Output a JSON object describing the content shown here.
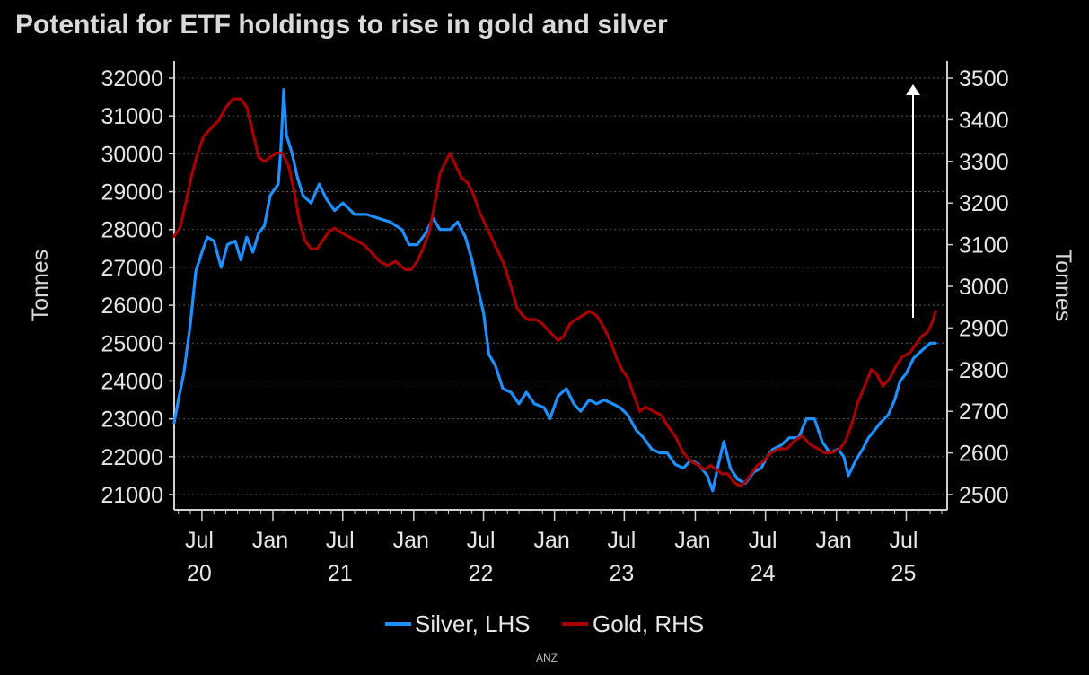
{
  "source": "ANZ",
  "colors": {
    "background": "#000000",
    "silver": "#1e90ff",
    "gold": "#a80000",
    "axis": "#d0d0d0",
    "grid": "#5a5a5a",
    "arrow": "#ffffff"
  },
  "chart_data": {
    "type": "line",
    "title": "Potential for ETF holdings to rise in gold and silver",
    "ylabel_left": "Tonnes",
    "ylabel_right": "Tonnes",
    "ylim_left": [
      21000,
      32000
    ],
    "ylim_right": [
      2500,
      3500
    ],
    "yticks_left": [
      "21000",
      "22000",
      "23000",
      "24000",
      "25000",
      "26000",
      "27000",
      "28000",
      "29000",
      "30000",
      "31000",
      "32000"
    ],
    "yticks_right": [
      "2500",
      "2600",
      "2700",
      "2800",
      "2900",
      "3000",
      "3100",
      "3200",
      "3300",
      "3400",
      "3500"
    ],
    "xlim": [
      "2020-04-20",
      "2025-10-15"
    ],
    "xticks": [
      {
        "date": "2020-07-01",
        "month": "Jul",
        "year": "20"
      },
      {
        "date": "2021-01-01",
        "month": "Jan",
        "year": ""
      },
      {
        "date": "2021-07-01",
        "month": "Jul",
        "year": "21"
      },
      {
        "date": "2022-01-01",
        "month": "Jan",
        "year": ""
      },
      {
        "date": "2022-07-01",
        "month": "Jul",
        "year": "22"
      },
      {
        "date": "2023-01-01",
        "month": "Jan",
        "year": ""
      },
      {
        "date": "2023-07-01",
        "month": "Jul",
        "year": "23"
      },
      {
        "date": "2024-01-01",
        "month": "Jan",
        "year": ""
      },
      {
        "date": "2024-07-01",
        "month": "Jul",
        "year": "24"
      },
      {
        "date": "2025-01-01",
        "month": "Jan",
        "year": ""
      },
      {
        "date": "2025-07-01",
        "month": "Jul",
        "year": "25"
      }
    ],
    "grid": "horizontal dotted",
    "legend_position": "bottom-center",
    "annotation": "upward arrow",
    "series": [
      {
        "name": "Silver, LHS",
        "axis": "left",
        "color": "#1e90ff",
        "points": [
          [
            "2020-04-20",
            22900
          ],
          [
            "2020-05-01",
            23500
          ],
          [
            "2020-05-15",
            24200
          ],
          [
            "2020-06-01",
            25500
          ],
          [
            "2020-06-15",
            26900
          ],
          [
            "2020-07-01",
            27400
          ],
          [
            "2020-07-15",
            27800
          ],
          [
            "2020-08-01",
            27700
          ],
          [
            "2020-08-20",
            27000
          ],
          [
            "2020-09-05",
            27600
          ],
          [
            "2020-09-25",
            27700
          ],
          [
            "2020-10-10",
            27200
          ],
          [
            "2020-10-25",
            27800
          ],
          [
            "2020-11-10",
            27400
          ],
          [
            "2020-11-25",
            27900
          ],
          [
            "2020-12-10",
            28100
          ],
          [
            "2020-12-25",
            28900
          ],
          [
            "2021-01-15",
            29200
          ],
          [
            "2021-01-22",
            30200
          ],
          [
            "2021-01-29",
            31700
          ],
          [
            "2021-02-05",
            30500
          ],
          [
            "2021-02-20",
            30000
          ],
          [
            "2021-03-05",
            29400
          ],
          [
            "2021-03-20",
            28900
          ],
          [
            "2021-04-10",
            28700
          ],
          [
            "2021-05-01",
            29200
          ],
          [
            "2021-05-20",
            28800
          ],
          [
            "2021-06-10",
            28500
          ],
          [
            "2021-07-01",
            28700
          ],
          [
            "2021-08-01",
            28400
          ],
          [
            "2021-09-01",
            28400
          ],
          [
            "2021-10-01",
            28300
          ],
          [
            "2021-11-01",
            28200
          ],
          [
            "2021-12-01",
            28000
          ],
          [
            "2021-12-20",
            27600
          ],
          [
            "2022-01-10",
            27600
          ],
          [
            "2022-02-01",
            27900
          ],
          [
            "2022-02-20",
            28300
          ],
          [
            "2022-03-10",
            28000
          ],
          [
            "2022-04-05",
            28000
          ],
          [
            "2022-04-25",
            28200
          ],
          [
            "2022-05-15",
            27800
          ],
          [
            "2022-06-01",
            27200
          ],
          [
            "2022-06-15",
            26500
          ],
          [
            "2022-07-01",
            25800
          ],
          [
            "2022-07-15",
            24700
          ],
          [
            "2022-08-01",
            24400
          ],
          [
            "2022-08-20",
            23800
          ],
          [
            "2022-09-10",
            23700
          ],
          [
            "2022-10-01",
            23400
          ],
          [
            "2022-10-20",
            23700
          ],
          [
            "2022-11-10",
            23400
          ],
          [
            "2022-12-05",
            23300
          ],
          [
            "2022-12-20",
            23000
          ],
          [
            "2023-01-10",
            23600
          ],
          [
            "2023-02-01",
            23800
          ],
          [
            "2023-02-20",
            23400
          ],
          [
            "2023-03-10",
            23200
          ],
          [
            "2023-04-01",
            23500
          ],
          [
            "2023-04-20",
            23400
          ],
          [
            "2023-05-10",
            23500
          ],
          [
            "2023-06-01",
            23400
          ],
          [
            "2023-06-20",
            23300
          ],
          [
            "2023-07-10",
            23100
          ],
          [
            "2023-08-01",
            22700
          ],
          [
            "2023-08-20",
            22500
          ],
          [
            "2023-09-10",
            22200
          ],
          [
            "2023-10-01",
            22100
          ],
          [
            "2023-10-20",
            22100
          ],
          [
            "2023-11-10",
            21800
          ],
          [
            "2023-12-01",
            21700
          ],
          [
            "2023-12-20",
            21900
          ],
          [
            "2024-01-10",
            21800
          ],
          [
            "2024-02-01",
            21500
          ],
          [
            "2024-02-15",
            21100
          ],
          [
            "2024-03-01",
            21800
          ],
          [
            "2024-03-15",
            22400
          ],
          [
            "2024-04-01",
            21700
          ],
          [
            "2024-04-20",
            21400
          ],
          [
            "2024-05-10",
            21300
          ],
          [
            "2024-06-01",
            21600
          ],
          [
            "2024-06-20",
            21700
          ],
          [
            "2024-07-05",
            22000
          ],
          [
            "2024-07-20",
            22200
          ],
          [
            "2024-08-10",
            22300
          ],
          [
            "2024-09-01",
            22500
          ],
          [
            "2024-09-25",
            22500
          ],
          [
            "2024-10-15",
            23000
          ],
          [
            "2024-11-05",
            23000
          ],
          [
            "2024-11-25",
            22400
          ],
          [
            "2024-12-15",
            22100
          ],
          [
            "2025-01-05",
            22200
          ],
          [
            "2025-01-20",
            22000
          ],
          [
            "2025-02-01",
            21500
          ],
          [
            "2025-02-20",
            21900
          ],
          [
            "2025-03-10",
            22200
          ],
          [
            "2025-03-25",
            22500
          ],
          [
            "2025-04-10",
            22700
          ],
          [
            "2025-04-25",
            22900
          ],
          [
            "2025-05-15",
            23100
          ],
          [
            "2025-06-01",
            23500
          ],
          [
            "2025-06-15",
            24000
          ],
          [
            "2025-07-01",
            24200
          ],
          [
            "2025-07-20",
            24600
          ],
          [
            "2025-08-10",
            24800
          ],
          [
            "2025-09-01",
            25000
          ],
          [
            "2025-09-15",
            25000
          ]
        ]
      },
      {
        "name": "Gold, RHS",
        "axis": "right",
        "color": "#a80000",
        "points": [
          [
            "2020-04-20",
            3120
          ],
          [
            "2020-05-05",
            3140
          ],
          [
            "2020-05-20",
            3200
          ],
          [
            "2020-06-05",
            3270
          ],
          [
            "2020-06-20",
            3320
          ],
          [
            "2020-07-05",
            3360
          ],
          [
            "2020-07-25",
            3380
          ],
          [
            "2020-08-15",
            3400
          ],
          [
            "2020-09-01",
            3430
          ],
          [
            "2020-09-20",
            3450
          ],
          [
            "2020-10-10",
            3450
          ],
          [
            "2020-10-25",
            3430
          ],
          [
            "2020-11-10",
            3370
          ],
          [
            "2020-11-25",
            3310
          ],
          [
            "2020-12-10",
            3300
          ],
          [
            "2020-12-25",
            3310
          ],
          [
            "2021-01-10",
            3320
          ],
          [
            "2021-01-25",
            3320
          ],
          [
            "2021-02-10",
            3290
          ],
          [
            "2021-02-25",
            3230
          ],
          [
            "2021-03-10",
            3160
          ],
          [
            "2021-03-25",
            3110
          ],
          [
            "2021-04-10",
            3090
          ],
          [
            "2021-04-25",
            3090
          ],
          [
            "2021-05-10",
            3110
          ],
          [
            "2021-05-25",
            3130
          ],
          [
            "2021-06-10",
            3140
          ],
          [
            "2021-06-25",
            3130
          ],
          [
            "2021-07-15",
            3120
          ],
          [
            "2021-08-05",
            3110
          ],
          [
            "2021-08-25",
            3100
          ],
          [
            "2021-09-15",
            3080
          ],
          [
            "2021-10-05",
            3060
          ],
          [
            "2021-10-25",
            3050
          ],
          [
            "2021-11-15",
            3060
          ],
          [
            "2021-12-10",
            3040
          ],
          [
            "2021-12-25",
            3040
          ],
          [
            "2022-01-10",
            3060
          ],
          [
            "2022-01-25",
            3090
          ],
          [
            "2022-02-10",
            3130
          ],
          [
            "2022-02-25",
            3200
          ],
          [
            "2022-03-10",
            3270
          ],
          [
            "2022-03-25",
            3300
          ],
          [
            "2022-04-05",
            3320
          ],
          [
            "2022-04-20",
            3290
          ],
          [
            "2022-05-05",
            3260
          ],
          [
            "2022-05-20",
            3250
          ],
          [
            "2022-06-05",
            3220
          ],
          [
            "2022-06-20",
            3180
          ],
          [
            "2022-07-10",
            3140
          ],
          [
            "2022-07-30",
            3100
          ],
          [
            "2022-08-20",
            3060
          ],
          [
            "2022-09-10",
            3000
          ],
          [
            "2022-09-25",
            2950
          ],
          [
            "2022-10-10",
            2930
          ],
          [
            "2022-10-25",
            2920
          ],
          [
            "2022-11-15",
            2920
          ],
          [
            "2022-12-01",
            2910
          ],
          [
            "2022-12-20",
            2890
          ],
          [
            "2023-01-10",
            2870
          ],
          [
            "2023-01-25",
            2880
          ],
          [
            "2023-02-10",
            2910
          ],
          [
            "2023-02-25",
            2920
          ],
          [
            "2023-03-15",
            2930
          ],
          [
            "2023-04-01",
            2940
          ],
          [
            "2023-04-20",
            2930
          ],
          [
            "2023-05-10",
            2900
          ],
          [
            "2023-05-25",
            2870
          ],
          [
            "2023-06-10",
            2830
          ],
          [
            "2023-06-25",
            2800
          ],
          [
            "2023-07-10",
            2780
          ],
          [
            "2023-07-25",
            2740
          ],
          [
            "2023-08-10",
            2700
          ],
          [
            "2023-08-25",
            2710
          ],
          [
            "2023-09-15",
            2700
          ],
          [
            "2023-10-05",
            2690
          ],
          [
            "2023-10-25",
            2660
          ],
          [
            "2023-11-10",
            2640
          ],
          [
            "2023-12-01",
            2600
          ],
          [
            "2023-12-20",
            2580
          ],
          [
            "2024-01-10",
            2570
          ],
          [
            "2024-01-25",
            2560
          ],
          [
            "2024-02-10",
            2570
          ],
          [
            "2024-02-25",
            2560
          ],
          [
            "2024-03-10",
            2550
          ],
          [
            "2024-03-25",
            2550
          ],
          [
            "2024-04-10",
            2530
          ],
          [
            "2024-04-25",
            2520
          ],
          [
            "2024-05-10",
            2530
          ],
          [
            "2024-05-25",
            2550
          ],
          [
            "2024-06-10",
            2570
          ],
          [
            "2024-06-25",
            2580
          ],
          [
            "2024-07-15",
            2600
          ],
          [
            "2024-08-05",
            2610
          ],
          [
            "2024-08-25",
            2610
          ],
          [
            "2024-09-15",
            2630
          ],
          [
            "2024-10-05",
            2640
          ],
          [
            "2024-10-25",
            2620
          ],
          [
            "2024-11-15",
            2610
          ],
          [
            "2024-12-01",
            2600
          ],
          [
            "2024-12-20",
            2600
          ],
          [
            "2025-01-10",
            2610
          ],
          [
            "2025-01-25",
            2630
          ],
          [
            "2025-02-10",
            2670
          ],
          [
            "2025-02-25",
            2720
          ],
          [
            "2025-03-15",
            2760
          ],
          [
            "2025-04-01",
            2800
          ],
          [
            "2025-04-15",
            2790
          ],
          [
            "2025-05-01",
            2760
          ],
          [
            "2025-05-20",
            2780
          ],
          [
            "2025-06-05",
            2810
          ],
          [
            "2025-06-20",
            2830
          ],
          [
            "2025-07-10",
            2840
          ],
          [
            "2025-07-25",
            2860
          ],
          [
            "2025-08-10",
            2880
          ],
          [
            "2025-08-25",
            2890
          ],
          [
            "2025-09-05",
            2910
          ],
          [
            "2025-09-15",
            2940
          ]
        ]
      }
    ]
  }
}
